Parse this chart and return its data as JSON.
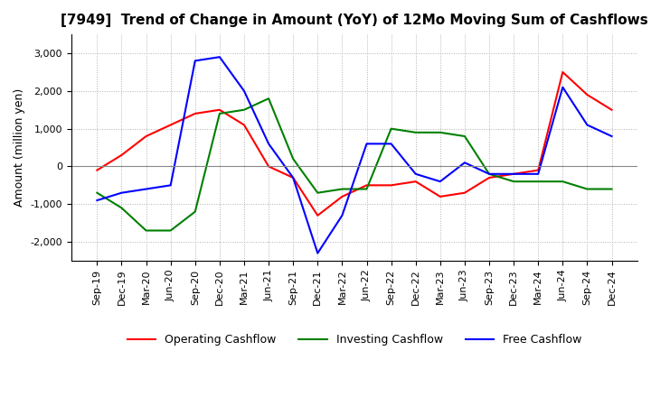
{
  "title": "[7949]  Trend of Change in Amount (YoY) of 12Mo Moving Sum of Cashflows",
  "ylabel": "Amount (million yen)",
  "background_color": "#ffffff",
  "grid_color": "#b0b0b0",
  "x_labels": [
    "Sep-19",
    "Dec-19",
    "Mar-20",
    "Jun-20",
    "Sep-20",
    "Dec-20",
    "Mar-21",
    "Jun-21",
    "Sep-21",
    "Dec-21",
    "Mar-22",
    "Jun-22",
    "Sep-22",
    "Dec-22",
    "Mar-23",
    "Jun-23",
    "Sep-23",
    "Dec-23",
    "Mar-24",
    "Jun-24",
    "Sep-24",
    "Dec-24"
  ],
  "operating": [
    -100,
    300,
    800,
    1100,
    1400,
    1500,
    1100,
    0,
    -300,
    -1300,
    -800,
    -500,
    -500,
    -400,
    -800,
    -700,
    -300,
    -200,
    -100,
    2500,
    1900,
    1500
  ],
  "investing": [
    -700,
    -1100,
    -1700,
    -1700,
    -1200,
    1400,
    1500,
    1800,
    200,
    -700,
    -600,
    -600,
    1000,
    900,
    900,
    800,
    -200,
    -400,
    -400,
    -400,
    -600,
    -600
  ],
  "free": [
    -900,
    -700,
    -600,
    -500,
    2800,
    2900,
    2000,
    600,
    -300,
    -2300,
    -1300,
    600,
    600,
    -200,
    -400,
    100,
    -200,
    -200,
    -200,
    2100,
    1100,
    800
  ],
  "operating_color": "#ff0000",
  "investing_color": "#008000",
  "free_color": "#0000ff",
  "ylim": [
    -2500,
    3500
  ],
  "yticks": [
    -2000,
    -1000,
    0,
    1000,
    2000,
    3000
  ]
}
